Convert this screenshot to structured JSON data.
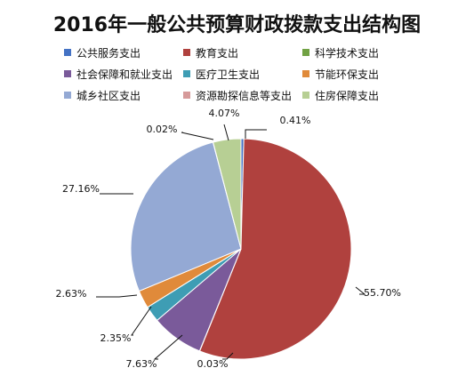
{
  "chart_data": {
    "type": "pie",
    "title": "2016年一般公共预算财政拨款支出结构图",
    "slices": [
      {
        "name": "公共服务支出",
        "value": 0.41,
        "label": "0.41%",
        "color": "#4472C4"
      },
      {
        "name": "教育支出",
        "value": 55.7,
        "label": "55.70%",
        "color": "#B0413E"
      },
      {
        "name": "科学技术支出",
        "value": 0.03,
        "label": "0.03%",
        "color": "#71A244"
      },
      {
        "name": "社会保障和就业支出",
        "value": 7.63,
        "label": "7.63%",
        "color": "#7A5A9A"
      },
      {
        "name": "医疗卫生支出",
        "value": 2.35,
        "label": "2.35%",
        "color": "#3E9DB4"
      },
      {
        "name": "节能环保支出",
        "value": 2.63,
        "label": "2.63%",
        "color": "#E08A3A"
      },
      {
        "name": "城乡社区支出",
        "value": 27.16,
        "label": "27.16%",
        "color": "#94A9D4"
      },
      {
        "name": "资源勘探信息等支出",
        "value": 0.02,
        "label": "0.02%",
        "color": "#D69A9A"
      },
      {
        "name": "住房保障支出",
        "value": 4.07,
        "label": "4.07%",
        "color": "#B7CF94"
      }
    ],
    "legend_placement": "top"
  }
}
